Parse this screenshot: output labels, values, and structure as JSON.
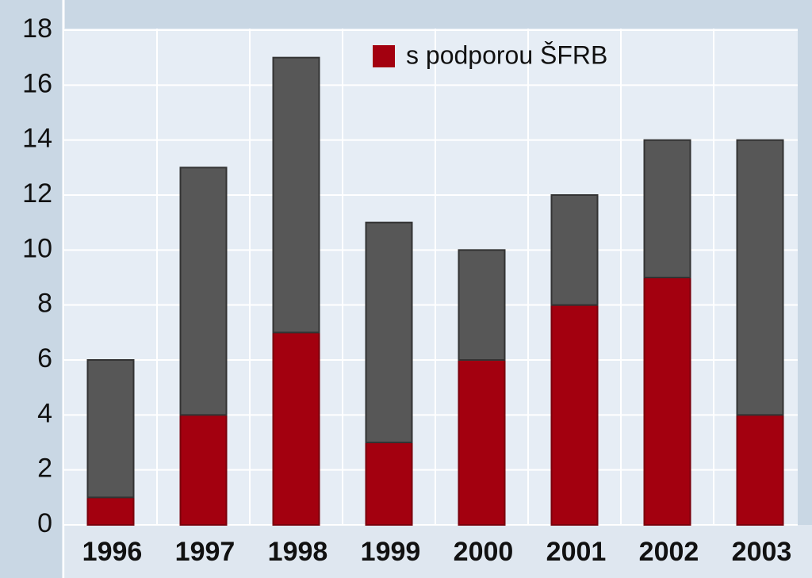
{
  "chart_data": {
    "type": "stacked-bar",
    "categories": [
      "1996",
      "1997",
      "1998",
      "1999",
      "2000",
      "2001",
      "2002",
      "2003"
    ],
    "series": [
      {
        "name": "s podporou ŠFRB",
        "color": "#a3000f",
        "values": [
          1,
          4,
          7,
          3,
          6,
          8,
          9,
          4
        ]
      },
      {
        "color": "#575757",
        "values": [
          5,
          9,
          10,
          8,
          4,
          4,
          5,
          10
        ]
      }
    ],
    "ylim": [
      0,
      18
    ],
    "yticks": [
      0,
      2,
      4,
      6,
      8,
      10,
      12,
      14,
      16,
      18
    ],
    "grid": true,
    "legend": "top"
  }
}
